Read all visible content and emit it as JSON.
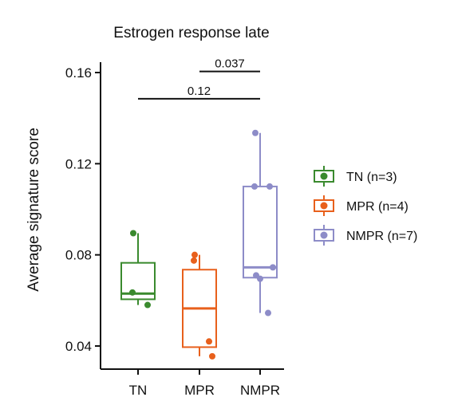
{
  "chart_data": {
    "type": "box",
    "title": "Estrogen response late",
    "xlabel": "",
    "ylabel": "Average signature score",
    "ylim": [
      0.03,
      0.165
    ],
    "yticks": [
      {
        "value": 0.04,
        "label": "0.04"
      },
      {
        "value": 0.08,
        "label": "0.08"
      },
      {
        "value": 0.12,
        "label": "0.12"
      },
      {
        "value": 0.16,
        "label": "0.16"
      }
    ],
    "categories": [
      "TN",
      "MPR",
      "NMPR"
    ],
    "legend_position": "right",
    "series": [
      {
        "name": "TN (n=3)",
        "category": "TN",
        "color": "#3a8a2e",
        "box": {
          "whisker_low": 0.058,
          "q1": 0.0605,
          "median": 0.063,
          "q3": 0.0765,
          "whisker_high": 0.0895
        },
        "points": [
          0.0895,
          0.0635,
          0.058
        ]
      },
      {
        "name": "MPR (n=4)",
        "category": "MPR",
        "color": "#e8601c",
        "box": {
          "whisker_low": 0.0355,
          "q1": 0.0395,
          "median": 0.0565,
          "q3": 0.0735,
          "whisker_high": 0.08
        },
        "points": [
          0.08,
          0.0775,
          0.042,
          0.0355
        ]
      },
      {
        "name": "NMPR (n=7)",
        "category": "NMPR",
        "color": "#8d8cc8",
        "box": {
          "whisker_low": 0.0545,
          "q1": 0.07,
          "median": 0.0745,
          "q3": 0.11,
          "whisker_high": 0.1335
        },
        "points": [
          0.1335,
          0.11,
          0.11,
          0.0745,
          0.071,
          0.0695,
          0.0545
        ]
      }
    ],
    "annotations": [
      {
        "from": "TN",
        "to": "NMPR",
        "y": 0.1485,
        "label": "0.12"
      },
      {
        "from": "MPR",
        "to": "NMPR",
        "y": 0.1605,
        "label": "0.037"
      }
    ]
  }
}
